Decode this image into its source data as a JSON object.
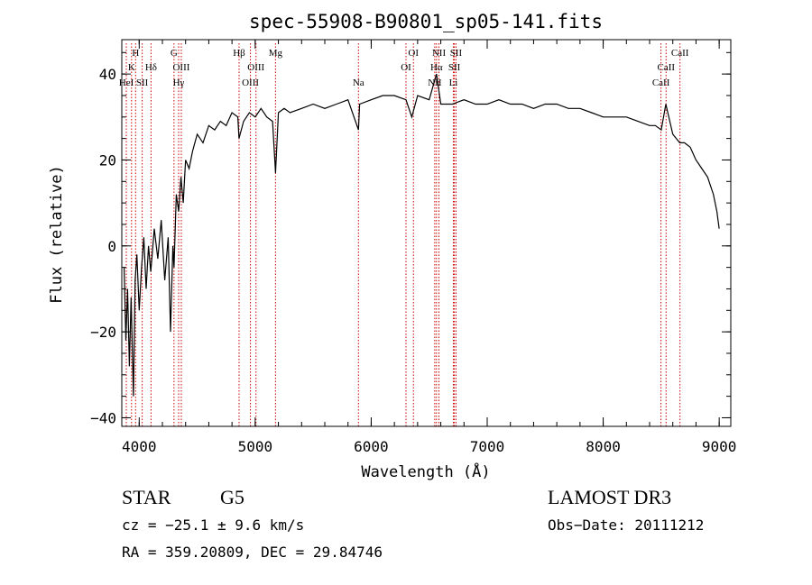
{
  "chart_data": {
    "type": "line",
    "title": "spec-55908-B90801_sp05-141.fits",
    "xlabel": "Wavelength (Å)",
    "ylabel": "Flux (relative)",
    "xlim": [
      3850,
      9100
    ],
    "ylim": [
      -42,
      48
    ],
    "xticks": [
      4000,
      5000,
      6000,
      7000,
      8000,
      9000
    ],
    "yticks": [
      -40,
      -20,
      0,
      20,
      40
    ],
    "x_minor_step": 200,
    "y_minor_step": 5,
    "series": [
      {
        "name": "spectrum",
        "color": "#000000",
        "x": [
          3870,
          3885,
          3900,
          3915,
          3930,
          3950,
          3965,
          3980,
          4000,
          4020,
          4040,
          4060,
          4080,
          4100,
          4130,
          4160,
          4190,
          4220,
          4250,
          4270,
          4290,
          4300,
          4320,
          4340,
          4360,
          4380,
          4400,
          4430,
          4460,
          4500,
          4550,
          4600,
          4650,
          4700,
          4750,
          4800,
          4850,
          4860,
          4900,
          4950,
          5000,
          5050,
          5100,
          5150,
          5175,
          5200,
          5250,
          5300,
          5400,
          5500,
          5600,
          5700,
          5800,
          5890,
          5900,
          6000,
          6100,
          6200,
          6300,
          6350,
          6400,
          6500,
          6563,
          6600,
          6700,
          6800,
          6900,
          7000,
          7100,
          7200,
          7300,
          7400,
          7500,
          7600,
          7700,
          7800,
          7900,
          8000,
          8100,
          8200,
          8300,
          8400,
          8450,
          8500,
          8540,
          8600,
          8660,
          8700,
          8750,
          8800,
          8850,
          8900,
          8950,
          8980,
          9000
        ],
        "y": [
          -5,
          -22,
          -10,
          -28,
          -12,
          -35,
          -8,
          -2,
          -15,
          -5,
          2,
          -10,
          0,
          -6,
          4,
          -3,
          6,
          -8,
          2,
          -20,
          0,
          -5,
          12,
          8,
          16,
          10,
          20,
          18,
          22,
          26,
          24,
          28,
          27,
          29,
          28,
          31,
          30,
          25,
          29,
          31,
          30,
          32,
          30,
          29,
          17,
          31,
          32,
          31,
          32,
          33,
          32,
          33,
          34,
          27,
          33,
          34,
          35,
          35,
          34,
          30,
          35,
          34,
          40,
          33,
          33,
          34,
          33,
          33,
          34,
          33,
          33,
          32,
          33,
          33,
          32,
          32,
          31,
          30,
          30,
          30,
          29,
          28,
          28,
          27,
          33,
          26,
          24,
          24,
          23,
          20,
          18,
          16,
          12,
          8,
          4
        ]
      }
    ],
    "line_markers": {
      "color": "#cc0000",
      "wavelengths": [
        3889,
        3934,
        3969,
        4026,
        4102,
        4300,
        4340,
        4363,
        4861,
        4959,
        5007,
        5175,
        5890,
        6300,
        6364,
        6548,
        6563,
        6584,
        6708,
        6717,
        6731,
        8498,
        8542,
        8662
      ],
      "labels": [
        {
          "text": "H",
          "x": 3969,
          "row": 0
        },
        {
          "text": "G",
          "x": 4300,
          "row": 0
        },
        {
          "text": "Hβ",
          "x": 4861,
          "row": 0
        },
        {
          "text": "Mg",
          "x": 5175,
          "row": 0
        },
        {
          "text": "OI",
          "x": 6364,
          "row": 0
        },
        {
          "text": "NII",
          "x": 6584,
          "row": 0
        },
        {
          "text": "SII",
          "x": 6731,
          "row": 0
        },
        {
          "text": "CaII",
          "x": 8662,
          "row": 0
        },
        {
          "text": "K",
          "x": 3934,
          "row": 1
        },
        {
          "text": "Hδ",
          "x": 4102,
          "row": 1
        },
        {
          "text": "OIII",
          "x": 4363,
          "row": 1
        },
        {
          "text": "OIII",
          "x": 5007,
          "row": 1
        },
        {
          "text": "OI",
          "x": 6300,
          "row": 1
        },
        {
          "text": "Hα",
          "x": 6563,
          "row": 1
        },
        {
          "text": "SII",
          "x": 6717,
          "row": 1
        },
        {
          "text": "CaII",
          "x": 8542,
          "row": 1
        },
        {
          "text": "HeI",
          "x": 3889,
          "row": 2
        },
        {
          "text": "SII",
          "x": 4026,
          "row": 2
        },
        {
          "text": "Hγ",
          "x": 4340,
          "row": 2
        },
        {
          "text": "OIII",
          "x": 4959,
          "row": 2
        },
        {
          "text": "Na",
          "x": 5890,
          "row": 2
        },
        {
          "text": "NII",
          "x": 6548,
          "row": 2
        },
        {
          "text": "Li",
          "x": 6708,
          "row": 2
        },
        {
          "text": "CaII",
          "x": 8498,
          "row": 2
        }
      ]
    }
  },
  "footer": {
    "class_label": "STAR",
    "subclass": "G5",
    "survey": "LAMOST DR3",
    "cz": "cz = −25.1 ± 9.6 km/s",
    "obs_date": "Obs−Date: 20111212",
    "coords": "RA = 359.20809, DEC =  29.84746"
  }
}
